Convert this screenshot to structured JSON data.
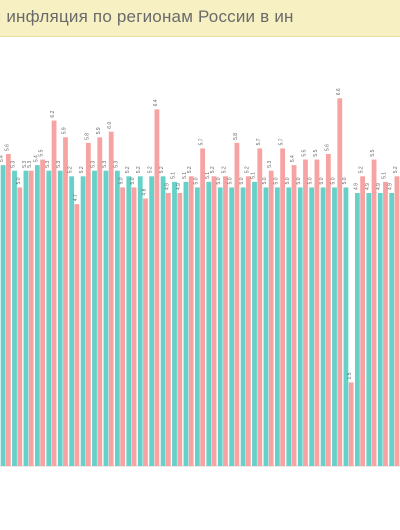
{
  "header": {
    "title": "я инфляция по регионам России в ин"
  },
  "chart_data": {
    "type": "bar",
    "title": "я инфляция по регионам России в ин",
    "xlabel": "",
    "ylabel": "",
    "ylim": [
      0,
      7
    ],
    "grid": false,
    "legend": "none",
    "categories": [
      "",
      "",
      "",
      "",
      "",
      "",
      "",
      "",
      "",
      "",
      "",
      "",
      "",
      "",
      "",
      "",
      "",
      "",
      "",
      "",
      "",
      "",
      "",
      "",
      "",
      "",
      "",
      "",
      "",
      "",
      "",
      "",
      "",
      "",
      ""
    ],
    "series": [
      {
        "color": "#66d1c8",
        "values": [
          5.4,
          5.3,
          5.3,
          5.4,
          5.3,
          5.3,
          5.2,
          5.2,
          5.3,
          5.3,
          5.3,
          5.2,
          5.2,
          5.2,
          5.2,
          5.1,
          5.1,
          5.0,
          5.1,
          5.0,
          5.0,
          5.0,
          5.1,
          5.0,
          5.0,
          5.0,
          5.0,
          5.0,
          5.0,
          5.0,
          5.0,
          4.9,
          4.9,
          4.9,
          4.9
        ]
      },
      {
        "color": "#f7a3a3",
        "values": [
          5.6,
          5.0,
          5.3,
          5.5,
          6.2,
          5.9,
          4.7,
          5.8,
          5.9,
          6.0,
          5.0,
          5.0,
          4.8,
          6.4,
          4.9,
          4.9,
          5.2,
          5.7,
          5.2,
          5.2,
          5.8,
          5.2,
          5.7,
          5.3,
          5.7,
          5.4,
          5.5,
          5.5,
          5.6,
          6.6,
          1.5,
          5.2,
          5.5,
          5.1,
          5.2
        ]
      }
    ]
  }
}
